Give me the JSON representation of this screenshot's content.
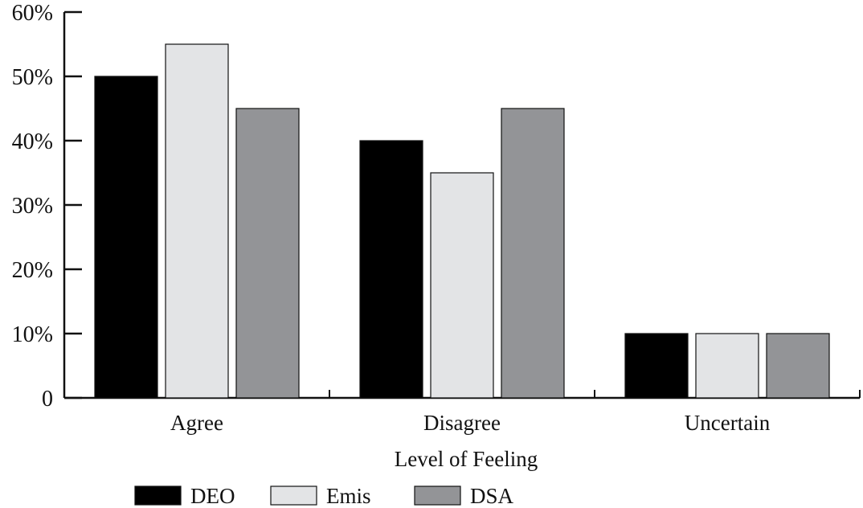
{
  "chart_data": {
    "type": "bar",
    "title": "",
    "xlabel": "Level of Feeling",
    "ylabel": "",
    "categories": [
      "Agree",
      "Disagree",
      "Uncertain"
    ],
    "series": [
      {
        "name": "DEO",
        "values": [
          50,
          40,
          10
        ],
        "color": "#000000"
      },
      {
        "name": "Emis",
        "values": [
          55,
          35,
          10
        ],
        "color": "#e3e4e6"
      },
      {
        "name": "DSA",
        "values": [
          45,
          45,
          10
        ],
        "color": "#939497"
      }
    ],
    "ylim": [
      0,
      60
    ],
    "yticks": [
      0,
      10,
      20,
      30,
      40,
      50,
      60
    ],
    "ytick_labels": [
      "0",
      "10%",
      "20%",
      "30%",
      "40%",
      "50%",
      "60%"
    ],
    "grid": false,
    "legend_position": "bottom"
  }
}
